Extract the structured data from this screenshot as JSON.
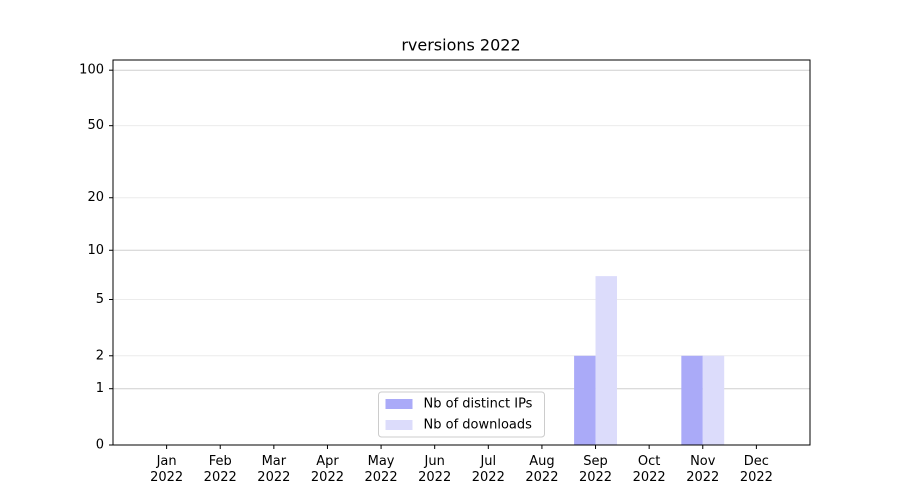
{
  "chart_data": {
    "type": "bar",
    "title": "rversions 2022",
    "categories": [
      "Jan 2022",
      "Feb 2022",
      "Mar 2022",
      "Apr 2022",
      "May 2022",
      "Jun 2022",
      "Jul 2022",
      "Aug 2022",
      "Sep 2022",
      "Oct 2022",
      "Nov 2022",
      "Dec 2022"
    ],
    "series": [
      {
        "name": "Nb of distinct IPs",
        "color": "#aaaaf8",
        "values": [
          0,
          0,
          0,
          0,
          0,
          0,
          0,
          0,
          2,
          0,
          2,
          0
        ]
      },
      {
        "name": "Nb of downloads",
        "color": "#dcdcfb",
        "values": [
          0,
          0,
          0,
          0,
          0,
          0,
          0,
          0,
          7,
          0,
          2,
          0
        ]
      }
    ],
    "yscale": "symlog",
    "ylim": [
      0,
      113.5
    ],
    "yticks": [
      0,
      1,
      2,
      5,
      10,
      20,
      50,
      100
    ],
    "grid": true,
    "legend": "lower center"
  }
}
